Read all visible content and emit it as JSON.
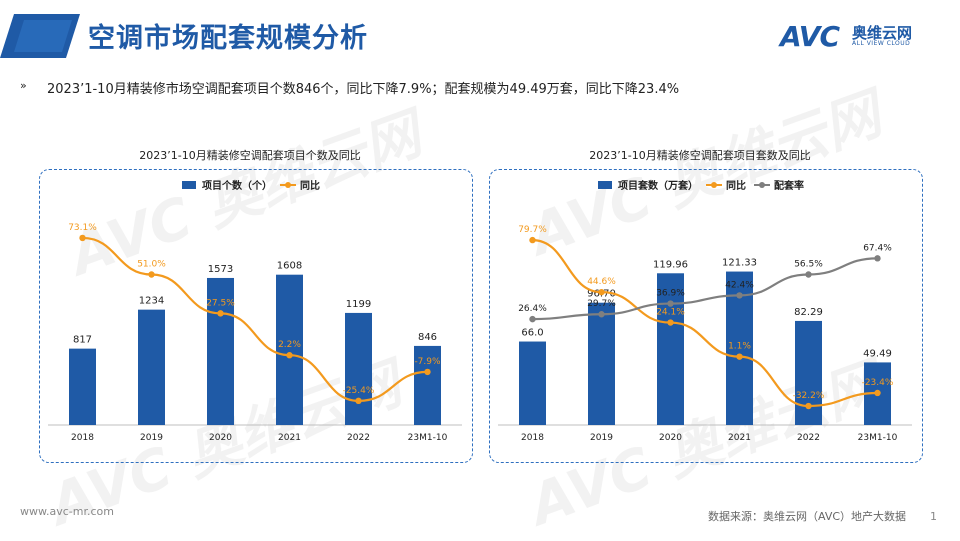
{
  "header": {
    "title": "空调市场配套规模分析",
    "logo_mark": "AVC",
    "logo_cn": "奥维云网",
    "logo_en": "ALL VIEW CLOUD"
  },
  "summary": {
    "icon": "»",
    "text": "2023’1-10月精装修市场空调配套项目个数846个，同比下降7.9%；配套规模为49.49万套，同比下降23.4%"
  },
  "watermark": {
    "mark": "AVC",
    "cn": "奥维云网",
    "en": "ALL VIEW CLOUD"
  },
  "chart_data": [
    {
      "type": "bar",
      "title": "2023’1-10月精装修空调配套项目个数及同比",
      "categories": [
        "2018",
        "2019",
        "2020",
        "2021",
        "2022",
        "23M1-10"
      ],
      "series": [
        {
          "name": "项目个数（个）",
          "kind": "bar",
          "color": "#1f5aa6",
          "values": [
            817,
            1234,
            1573,
            1608,
            1199,
            846
          ],
          "labels": [
            "817",
            "1234",
            "1573",
            "1608",
            "1199",
            "846"
          ]
        },
        {
          "name": "同比",
          "kind": "line",
          "color": "#f39a1e",
          "values": [
            73.1,
            51.0,
            27.5,
            2.2,
            -25.4,
            -7.9
          ],
          "labels": [
            "73.1%",
            "51.0%",
            "27.5%",
            "2.2%",
            "-25.4%",
            "-7.9%"
          ]
        }
      ],
      "bar_max": 2300,
      "line_range": [
        -40,
        90
      ]
    },
    {
      "type": "bar",
      "title": "2023’1-10月精装修空调配套项目套数及同比",
      "categories": [
        "2018",
        "2019",
        "2020",
        "2021",
        "2022",
        "23M1-10"
      ],
      "series": [
        {
          "name": "项目套数（万套）",
          "kind": "bar",
          "color": "#1f5aa6",
          "values": [
            66.0,
            96.7,
            119.96,
            121.33,
            82.29,
            49.49
          ],
          "labels": [
            "66.0",
            "96.70",
            "119.96",
            "121.33",
            "82.29",
            "49.49"
          ]
        },
        {
          "name": "同比",
          "kind": "line",
          "color": "#f39a1e",
          "values": [
            79.7,
            44.6,
            24.1,
            1.1,
            -32.2,
            -23.4
          ],
          "labels": [
            "79.7%",
            "44.6%",
            "24.1%",
            "1.1%",
            "-32.2%",
            "-23.4%"
          ]
        },
        {
          "name": "配套率",
          "kind": "line",
          "color": "#7f7f7f",
          "values": [
            26.4,
            29.7,
            36.9,
            42.4,
            56.5,
            67.4
          ],
          "labels": [
            "26.4%",
            "29.7%",
            "36.9%",
            "42.4%",
            "56.5%",
            "67.4%"
          ]
        }
      ],
      "bar_max": 170,
      "line_range": [
        -45,
        100
      ]
    }
  ],
  "footer": {
    "url": "www.avc-mr.com",
    "source": "数据来源：奥维云网（AVC）地产大数据",
    "page": "1"
  }
}
